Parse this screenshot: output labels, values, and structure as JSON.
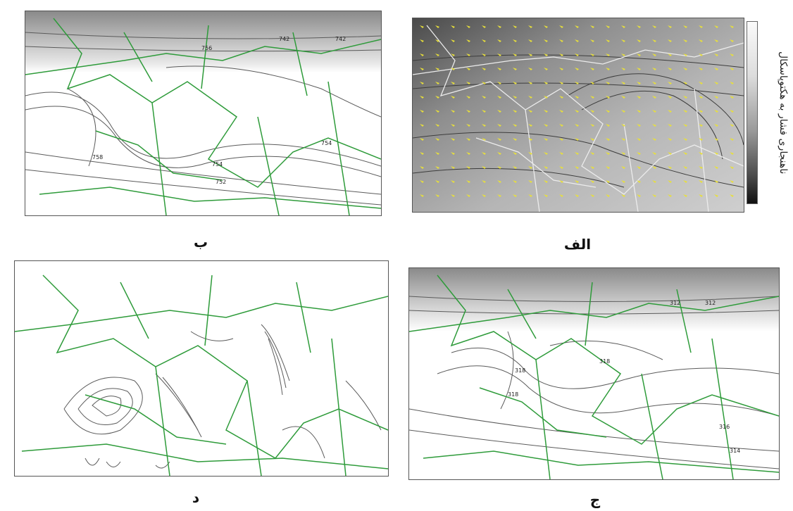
{
  "panels": {
    "alef": {
      "caption": "الف"
    },
    "be": {
      "caption": "ب",
      "contour_labels": [
        "742",
        "742",
        "756",
        "758",
        "754",
        "754",
        "752"
      ]
    },
    "jim": {
      "caption": "ج",
      "contour_labels": [
        "312",
        "318",
        "312",
        "318",
        "318",
        "316",
        "314"
      ]
    },
    "dal": {
      "caption": "د"
    }
  },
  "colorbar": {
    "title": "ناهنجاری فشار به هکتوپاسکال"
  },
  "colors": {
    "coast": "#2e9b3a",
    "contour": "#5a5a5a",
    "wind": "#e8e03a"
  }
}
